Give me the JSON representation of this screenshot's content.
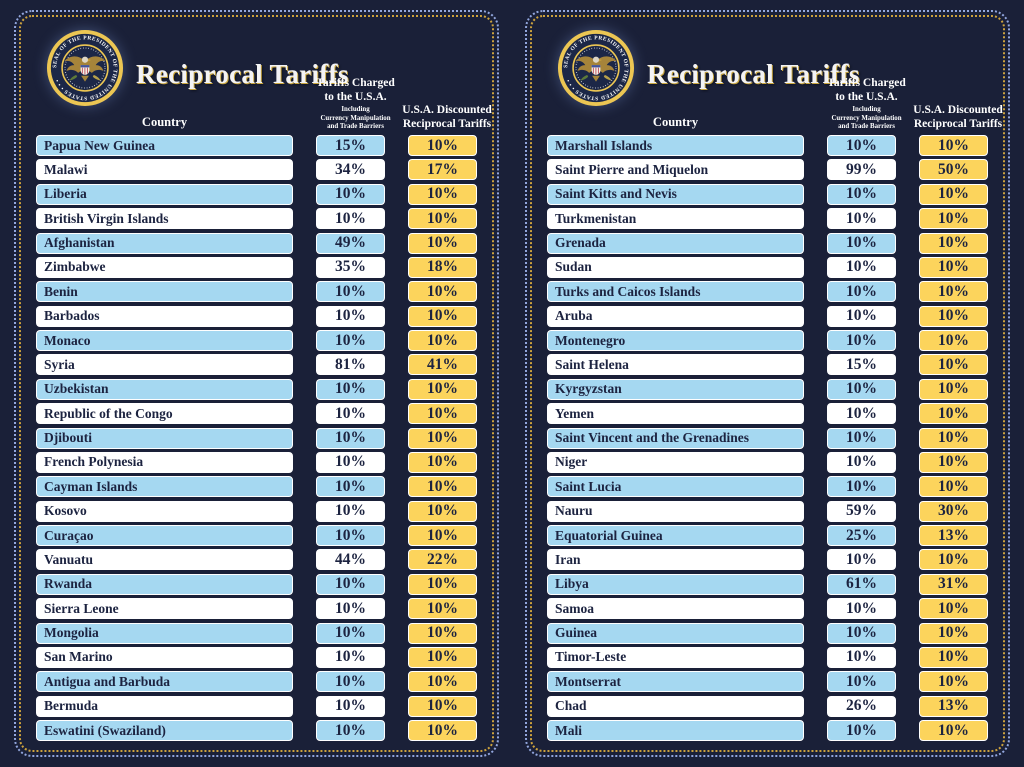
{
  "title": "Reciprocal Tariffs",
  "header": {
    "country": "Country",
    "charged_lines": [
      "Tariffs Charged",
      "to the U.S.A."
    ],
    "charged_sub": [
      "Including",
      "Currency Manipulation",
      "and Trade Barriers"
    ],
    "discounted_lines": [
      "U.S.A. Discounted",
      "Reciprocal Tariffs"
    ]
  },
  "seal": {
    "name": "seal-of-the-president-of-the-united-states",
    "ring_text": "SEAL OF THE PRESIDENT OF THE UNITED STATES • • •"
  },
  "colors": {
    "background": "#1a2038",
    "row_blue": "#a5d8f1",
    "row_white": "#ffffff",
    "discount_gold": "#fcd45c",
    "border_gold_dotted": "#cda23d",
    "border_blue_dotted": "#93a7de",
    "bar_text_navy": "#1c2340",
    "header_text": "#ffffff"
  },
  "chart_data": [
    {
      "type": "table",
      "title": "Reciprocal Tariffs",
      "columns": [
        "Country",
        "Tariffs Charged to the U.S.A. Including Currency Manipulation and Trade Barriers",
        "U.S.A. Discounted Reciprocal Tariffs"
      ],
      "rows": [
        [
          "Papua New Guinea",
          "15%",
          "10%"
        ],
        [
          "Malawi",
          "34%",
          "17%"
        ],
        [
          "Liberia",
          "10%",
          "10%"
        ],
        [
          "British Virgin Islands",
          "10%",
          "10%"
        ],
        [
          "Afghanistan",
          "49%",
          "10%"
        ],
        [
          "Zimbabwe",
          "35%",
          "18%"
        ],
        [
          "Benin",
          "10%",
          "10%"
        ],
        [
          "Barbados",
          "10%",
          "10%"
        ],
        [
          "Monaco",
          "10%",
          "10%"
        ],
        [
          "Syria",
          "81%",
          "41%"
        ],
        [
          "Uzbekistan",
          "10%",
          "10%"
        ],
        [
          "Republic of the Congo",
          "10%",
          "10%"
        ],
        [
          "Djibouti",
          "10%",
          "10%"
        ],
        [
          "French Polynesia",
          "10%",
          "10%"
        ],
        [
          "Cayman Islands",
          "10%",
          "10%"
        ],
        [
          "Kosovo",
          "10%",
          "10%"
        ],
        [
          "Curaçao",
          "10%",
          "10%"
        ],
        [
          "Vanuatu",
          "44%",
          "22%"
        ],
        [
          "Rwanda",
          "10%",
          "10%"
        ],
        [
          "Sierra Leone",
          "10%",
          "10%"
        ],
        [
          "Mongolia",
          "10%",
          "10%"
        ],
        [
          "San Marino",
          "10%",
          "10%"
        ],
        [
          "Antigua and Barbuda",
          "10%",
          "10%"
        ],
        [
          "Bermuda",
          "10%",
          "10%"
        ],
        [
          "Eswatini (Swaziland)",
          "10%",
          "10%"
        ]
      ]
    },
    {
      "type": "table",
      "title": "Reciprocal Tariffs",
      "columns": [
        "Country",
        "Tariffs Charged to the U.S.A. Including Currency Manipulation and Trade Barriers",
        "U.S.A. Discounted Reciprocal Tariffs"
      ],
      "rows": [
        [
          "Marshall Islands",
          "10%",
          "10%"
        ],
        [
          "Saint Pierre and Miquelon",
          "99%",
          "50%"
        ],
        [
          "Saint Kitts and Nevis",
          "10%",
          "10%"
        ],
        [
          "Turkmenistan",
          "10%",
          "10%"
        ],
        [
          "Grenada",
          "10%",
          "10%"
        ],
        [
          "Sudan",
          "10%",
          "10%"
        ],
        [
          "Turks and Caicos Islands",
          "10%",
          "10%"
        ],
        [
          "Aruba",
          "10%",
          "10%"
        ],
        [
          "Montenegro",
          "10%",
          "10%"
        ],
        [
          "Saint Helena",
          "15%",
          "10%"
        ],
        [
          "Kyrgyzstan",
          "10%",
          "10%"
        ],
        [
          "Yemen",
          "10%",
          "10%"
        ],
        [
          "Saint Vincent and the Grenadines",
          "10%",
          "10%"
        ],
        [
          "Niger",
          "10%",
          "10%"
        ],
        [
          "Saint Lucia",
          "10%",
          "10%"
        ],
        [
          "Nauru",
          "59%",
          "30%"
        ],
        [
          "Equatorial Guinea",
          "25%",
          "13%"
        ],
        [
          "Iran",
          "10%",
          "10%"
        ],
        [
          "Libya",
          "61%",
          "31%"
        ],
        [
          "Samoa",
          "10%",
          "10%"
        ],
        [
          "Guinea",
          "10%",
          "10%"
        ],
        [
          "Timor-Leste",
          "10%",
          "10%"
        ],
        [
          "Montserrat",
          "10%",
          "10%"
        ],
        [
          "Chad",
          "26%",
          "13%"
        ],
        [
          "Mali",
          "10%",
          "10%"
        ]
      ]
    }
  ]
}
